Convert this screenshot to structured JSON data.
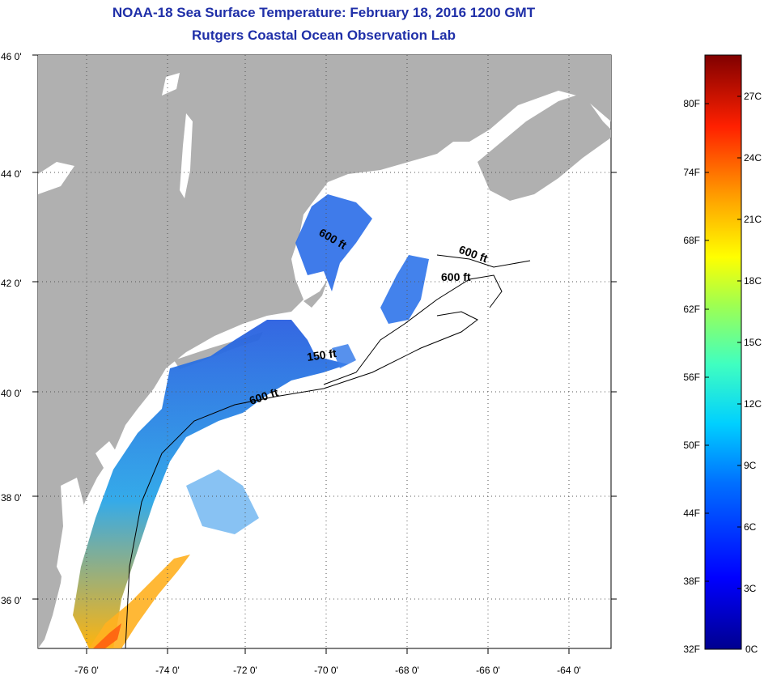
{
  "header": {
    "title": "NOAA-18 Sea Surface Temperature:  February 18, 2016 1200 GMT",
    "subtitle": "Rutgers Coastal Ocean Observation Lab"
  },
  "map": {
    "lat_labels": [
      "46 0'",
      "44 0'",
      "42 0'",
      "40 0'",
      "38 0'",
      "36 0'"
    ],
    "lon_labels": [
      "-76 0'",
      "-74 0'",
      "-72 0'",
      "-70 0'",
      "-68 0'",
      "-66 0'",
      "-64 0'"
    ],
    "contour_labels": [
      "600 ft",
      "600 ft",
      "600 ft",
      "150 ft",
      "600 ft"
    ],
    "colors": {
      "land": "#b0b0b0",
      "ocean": "#ffffff",
      "grid": "#000000"
    }
  },
  "colorbar": {
    "fahrenheit": [
      "80F",
      "74F",
      "68F",
      "62F",
      "56F",
      "50F",
      "44F",
      "38F",
      "32F"
    ],
    "celsius": [
      "27C",
      "24C",
      "21C",
      "18C",
      "15C",
      "12C",
      "9C",
      "6C",
      "3C",
      "0C"
    ]
  }
}
